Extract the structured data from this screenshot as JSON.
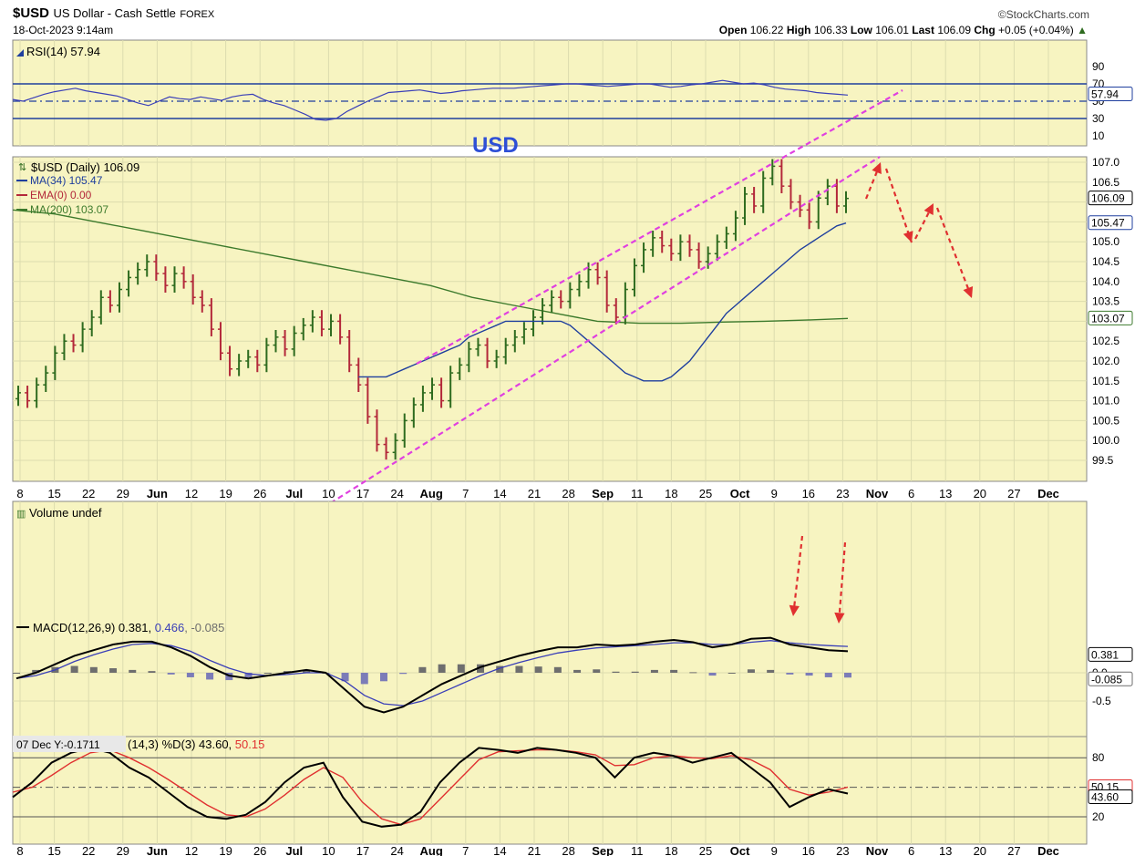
{
  "header": {
    "symbol": "$USD",
    "name": "US Dollar - Cash Settle",
    "exchange": "FOREX",
    "datetime": "18-Oct-2023 9:14am",
    "source": "©StockCharts.com",
    "open_label": "Open",
    "open": "106.22",
    "high_label": "High",
    "high": "106.33",
    "low_label": "Low",
    "low": "106.01",
    "last_label": "Last",
    "last": "106.09",
    "chg_label": "Chg",
    "chg": "+0.05 (+0.04%)"
  },
  "annotation": "USD",
  "rsi": {
    "label": "RSI(14) 57.94",
    "value": 57.94,
    "value_label": "57.94",
    "ticks": [
      "90",
      "70",
      "50",
      "30",
      "10"
    ],
    "values": [
      52,
      50,
      54,
      58,
      61,
      63,
      65,
      62,
      60,
      58,
      56,
      52,
      48,
      45,
      50,
      55,
      53,
      52,
      55,
      53,
      51,
      55,
      57,
      58,
      52,
      48,
      45,
      40,
      35,
      29,
      28,
      30,
      38,
      44,
      50,
      55,
      60,
      61,
      62,
      63,
      61,
      59,
      60,
      62,
      63,
      64,
      65,
      65,
      65,
      66,
      67,
      68,
      69,
      70,
      70,
      69,
      68,
      67,
      68,
      69,
      70,
      70,
      68,
      66,
      67,
      69,
      70,
      72,
      74,
      72,
      70,
      71,
      69,
      66,
      64,
      63,
      62,
      60,
      59,
      58,
      57
    ]
  },
  "price": {
    "label": "$USD (Daily) 106.09",
    "ma34_label": "MA(34) 105.47",
    "ema0_label": "EMA(0) 0.00",
    "ma200_label": "MA(200) 103.07",
    "ticks": [
      "107.0",
      "106.5",
      "106.0",
      "105.5",
      "105.0",
      "104.5",
      "104.0",
      "103.5",
      "103.0",
      "102.5",
      "102.0",
      "101.5",
      "101.0",
      "100.5",
      "100.0",
      "99.5"
    ],
    "last_label": "106.09",
    "ma34_value_label": "105.47",
    "ma200_value_label": "103.07",
    "closes": [
      101.2,
      101.0,
      101.4,
      101.7,
      102.2,
      102.5,
      102.4,
      102.8,
      103.1,
      103.6,
      103.4,
      103.8,
      104.1,
      104.3,
      104.5,
      104.2,
      103.9,
      104.2,
      104.0,
      103.6,
      103.4,
      102.8,
      102.2,
      101.8,
      102.0,
      102.1,
      101.9,
      102.4,
      102.6,
      102.3,
      102.7,
      102.9,
      103.1,
      102.8,
      103.0,
      102.6,
      101.9,
      101.4,
      100.6,
      99.9,
      99.7,
      100.0,
      100.5,
      100.9,
      101.2,
      101.4,
      101.0,
      101.7,
      101.9,
      102.3,
      102.4,
      102.0,
      102.1,
      102.4,
      102.6,
      102.8,
      103.1,
      103.4,
      103.6,
      103.5,
      103.8,
      104.0,
      104.3,
      104.1,
      103.4,
      103.1,
      103.8,
      104.4,
      104.8,
      105.1,
      104.9,
      104.7,
      105.0,
      104.8,
      104.5,
      104.7,
      105.0,
      105.2,
      105.6,
      106.2,
      105.9,
      106.6,
      106.9,
      106.4,
      106.0,
      105.8,
      105.5,
      106.1,
      106.4,
      105.9,
      106.09
    ],
    "ma34": [
      101.6,
      101.6,
      101.6,
      101.6,
      101.7,
      101.8,
      101.9,
      102.0,
      102.1,
      102.2,
      102.3,
      102.4,
      102.6,
      102.7,
      102.8,
      102.9,
      103.0,
      103.0,
      103.0,
      103.0,
      103.0,
      103.0,
      103.0,
      102.9,
      102.7,
      102.5,
      102.3,
      102.1,
      101.9,
      101.7,
      101.6,
      101.5,
      101.5,
      101.5,
      101.6,
      101.8,
      102.0,
      102.3,
      102.6,
      102.9,
      103.2,
      103.4,
      103.6,
      103.8,
      104.0,
      104.2,
      104.4,
      104.6,
      104.8,
      104.95,
      105.1,
      105.25,
      105.4,
      105.47
    ],
    "ma34_start": 37,
    "ma200": [
      105.8,
      105.7,
      105.5,
      105.3,
      105.1,
      104.9,
      104.7,
      104.5,
      104.3,
      104.1,
      103.9,
      103.6,
      103.4,
      103.2,
      103.0,
      102.95,
      102.95,
      102.98,
      103.0,
      103.03,
      103.07
    ]
  },
  "x_ticks": [
    "8",
    "15",
    "22",
    "29",
    "Jun",
    "12",
    "19",
    "26",
    "Jul",
    "10",
    "17",
    "24",
    "Aug",
    "7",
    "14",
    "21",
    "28",
    "Sep",
    "11",
    "18",
    "25",
    "Oct",
    "9",
    "16",
    "23",
    "Nov",
    "6",
    "13",
    "20",
    "27",
    "Dec"
  ],
  "volume": {
    "label": "Volume undef"
  },
  "macd": {
    "label_prefix": "MACD(12,26,9)",
    "macd_value": "0.381",
    "signal_value": "0.466",
    "hist_value": "-0.085",
    "ticks": [
      "0.0",
      "-0.5"
    ],
    "macd_value_label": "0.381",
    "hist_value_label": "-0.085",
    "macd": [
      -0.1,
      0.0,
      0.15,
      0.3,
      0.4,
      0.5,
      0.55,
      0.55,
      0.45,
      0.3,
      0.1,
      -0.05,
      -0.1,
      -0.05,
      0.0,
      0.05,
      0.0,
      -0.3,
      -0.6,
      -0.7,
      -0.6,
      -0.4,
      -0.2,
      -0.05,
      0.1,
      0.2,
      0.3,
      0.38,
      0.45,
      0.45,
      0.5,
      0.48,
      0.5,
      0.55,
      0.58,
      0.54,
      0.45,
      0.5,
      0.6,
      0.62,
      0.5,
      0.45,
      0.4,
      0.381
    ],
    "signal": [
      -0.1,
      -0.05,
      0.05,
      0.2,
      0.32,
      0.42,
      0.5,
      0.52,
      0.48,
      0.38,
      0.22,
      0.08,
      -0.02,
      -0.05,
      -0.03,
      0.0,
      0.0,
      -0.15,
      -0.4,
      -0.55,
      -0.58,
      -0.5,
      -0.35,
      -0.2,
      -0.05,
      0.08,
      0.18,
      0.27,
      0.35,
      0.4,
      0.44,
      0.46,
      0.48,
      0.5,
      0.53,
      0.53,
      0.5,
      0.5,
      0.54,
      0.57,
      0.53,
      0.5,
      0.48,
      0.466
    ],
    "hist": [
      0.0,
      0.05,
      0.1,
      0.12,
      0.1,
      0.08,
      0.05,
      0.03,
      -0.03,
      -0.08,
      -0.12,
      -0.13,
      -0.08,
      0.0,
      0.03,
      0.05,
      0.0,
      -0.15,
      -0.2,
      -0.15,
      -0.02,
      0.1,
      0.15,
      0.15,
      0.15,
      0.12,
      0.12,
      0.11,
      0.1,
      0.05,
      0.06,
      0.02,
      0.02,
      0.05,
      0.05,
      0.01,
      -0.05,
      0.0,
      0.06,
      0.05,
      -0.03,
      -0.05,
      -0.08,
      -0.085
    ]
  },
  "stoch": {
    "label_prefix": "07 Dec Y:-0.1711",
    "label_mid": "(14,3) %D(3) 43.60,",
    "label_d": "50.15",
    "ticks": [
      "80",
      "20"
    ],
    "k_value_label": "43.60",
    "d_value_label": "50.15",
    "k": [
      40,
      55,
      75,
      85,
      90,
      85,
      70,
      60,
      45,
      30,
      20,
      18,
      22,
      35,
      55,
      70,
      75,
      40,
      15,
      10,
      12,
      25,
      55,
      75,
      90,
      88,
      85,
      90,
      88,
      85,
      80,
      60,
      80,
      85,
      82,
      75,
      80,
      85,
      70,
      55,
      30,
      40,
      48,
      43.6
    ],
    "d": [
      45,
      50,
      62,
      75,
      85,
      88,
      80,
      70,
      58,
      45,
      32,
      22,
      20,
      28,
      42,
      58,
      70,
      60,
      35,
      18,
      12,
      18,
      38,
      58,
      78,
      86,
      87,
      88,
      88,
      86,
      83,
      72,
      73,
      80,
      82,
      80,
      79,
      82,
      78,
      68,
      48,
      42,
      45,
      50.15
    ]
  },
  "colors": {
    "panel_bg": "#f7f4c1",
    "grid": "#dcdcae",
    "up_bar": "#2e6b1f",
    "down_bar": "#b3283a",
    "ma34": "#1f3f9e",
    "ma200": "#3c7a2c",
    "channel": "#e040e0",
    "arrow": "#e03030",
    "macd_hist": "#7c7cb8",
    "stoch_k": "#000000",
    "stoch_d": "#e03030",
    "annotation": "#2e4fd6"
  }
}
